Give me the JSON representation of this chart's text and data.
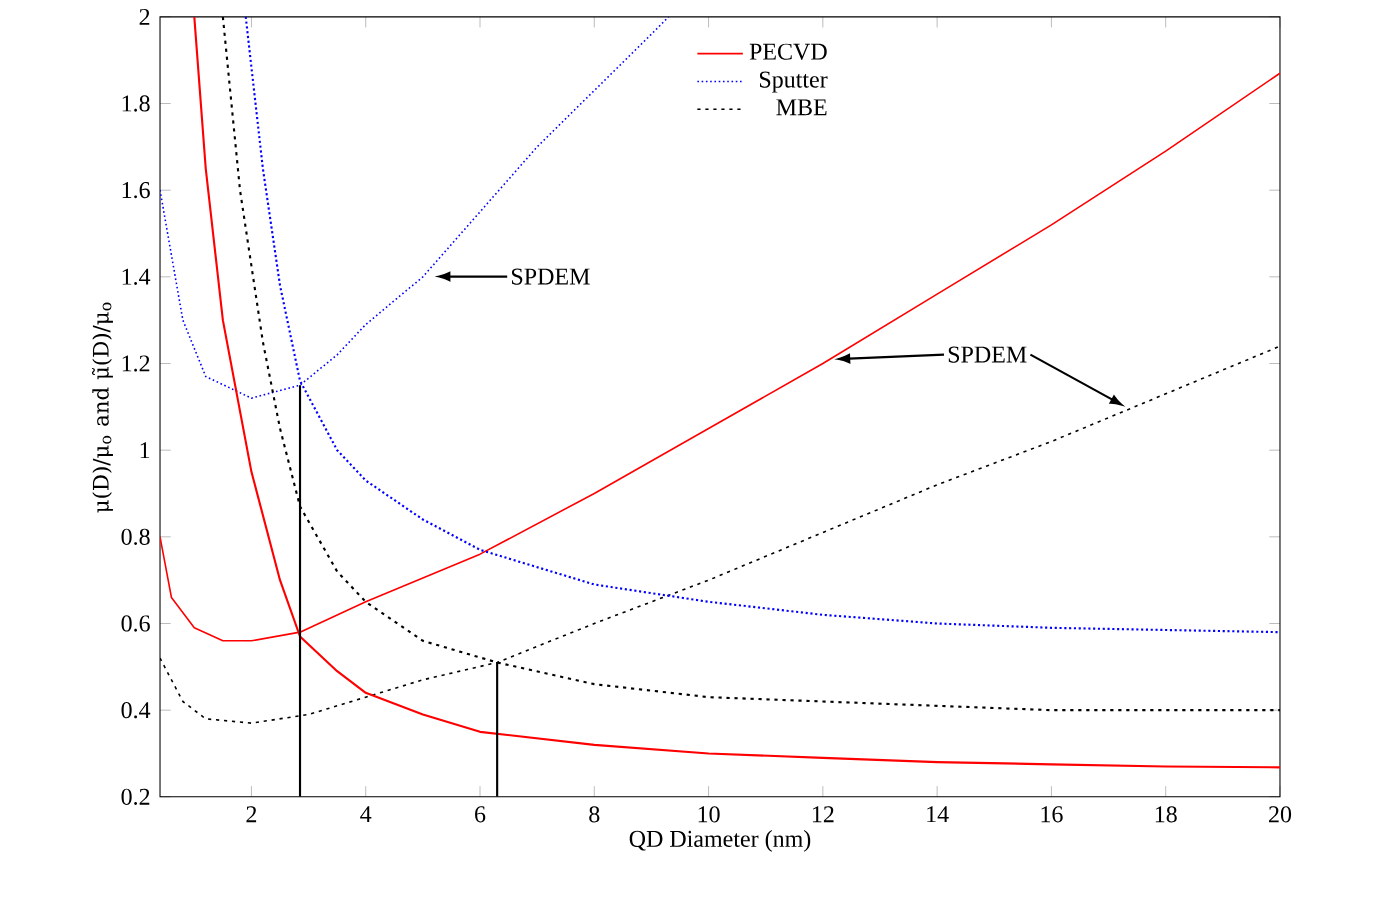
{
  "chart_data": {
    "type": "line",
    "xlabel": "QD Diameter (nm)",
    "ylabel": "μ(D)/μ$_{o}$ and μ̃(D)/μ$_{o}$",
    "xlim": [
      0.4,
      20
    ],
    "ylim": [
      0.2,
      2
    ],
    "xticks": [
      2,
      4,
      6,
      8,
      10,
      12,
      14,
      16,
      18,
      20
    ],
    "yticks": [
      0.2,
      0.4,
      0.6,
      0.8,
      1,
      1.2,
      1.4,
      1.6,
      1.8,
      2
    ],
    "grid": false,
    "legend": "top",
    "marker": "none",
    "series": [
      {
        "name": "PECVD",
        "color": "#ff0000",
        "line_style": "solid",
        "x": [
          0.4,
          0.6,
          1,
          1.5,
          2,
          2.85,
          4,
          6,
          8,
          10,
          12,
          14,
          16,
          18,
          20
        ],
        "values": [
          0.8,
          0.66,
          0.59,
          0.56,
          0.56,
          0.58,
          0.65,
          0.76,
          0.9,
          1.05,
          1.2,
          1.36,
          1.52,
          1.69,
          1.87
        ]
      },
      {
        "name": "Sputter",
        "color": "#0000ff",
        "line_style": "dotted",
        "x": [
          0.4,
          0.8,
          1.2,
          2,
          2.85,
          3.5,
          4,
          5,
          6,
          7,
          8,
          9,
          9.3
        ],
        "values": [
          1.6,
          1.3,
          1.17,
          1.12,
          1.15,
          1.22,
          1.29,
          1.4,
          1.55,
          1.7,
          1.83,
          1.96,
          2.0
        ]
      },
      {
        "name": "MBE",
        "color": "#000000",
        "line_style": "dashed",
        "x": [
          0.4,
          0.8,
          1.2,
          2,
          3,
          4,
          5,
          6.3,
          8,
          10,
          12,
          14,
          16,
          18,
          20
        ],
        "values": [
          0.52,
          0.42,
          0.38,
          0.37,
          0.39,
          0.43,
          0.47,
          0.51,
          0.6,
          0.7,
          0.81,
          0.92,
          1.02,
          1.13,
          1.24
        ]
      },
      {
        "color": "#ff0000",
        "line_style": "solid",
        "x": [
          1.0,
          1.2,
          1.5,
          2,
          2.5,
          2.85,
          3.5,
          4,
          5,
          6,
          8,
          10,
          12,
          14,
          16,
          18,
          20
        ],
        "values": [
          2.0,
          1.65,
          1.3,
          0.95,
          0.7,
          0.57,
          0.49,
          0.44,
          0.39,
          0.35,
          0.32,
          0.3,
          0.29,
          0.28,
          0.275,
          0.27,
          0.268
        ]
      },
      {
        "color": "#0000ff",
        "line_style": "dotted",
        "x": [
          1.9,
          2.2,
          2.5,
          2.85,
          3.5,
          4,
          5,
          6,
          8,
          10,
          12,
          14,
          16,
          18,
          20
        ],
        "values": [
          2.0,
          1.65,
          1.38,
          1.16,
          1.0,
          0.93,
          0.84,
          0.77,
          0.69,
          0.65,
          0.62,
          0.6,
          0.59,
          0.585,
          0.58
        ]
      },
      {
        "color": "#000000",
        "line_style": "dashed",
        "x": [
          1.5,
          1.8,
          2.2,
          2.5,
          2.85,
          3.5,
          4,
          5,
          6.3,
          8,
          10,
          12,
          14,
          16,
          18,
          20
        ],
        "values": [
          2.0,
          1.6,
          1.25,
          1.05,
          0.87,
          0.72,
          0.65,
          0.56,
          0.51,
          0.46,
          0.43,
          0.42,
          0.41,
          0.4,
          0.4,
          0.4
        ]
      },
      {
        "color": "#000000",
        "line_style": "solid",
        "x": [
          2.85,
          2.85
        ],
        "values": [
          0.2,
          1.15
        ]
      },
      {
        "color": "#000000",
        "line_style": "solid",
        "x": [
          6.3,
          6.3
        ],
        "values": [
          0.2,
          0.51
        ]
      }
    ],
    "annotations": [
      "SPDEM",
      "SPDEM"
    ]
  }
}
